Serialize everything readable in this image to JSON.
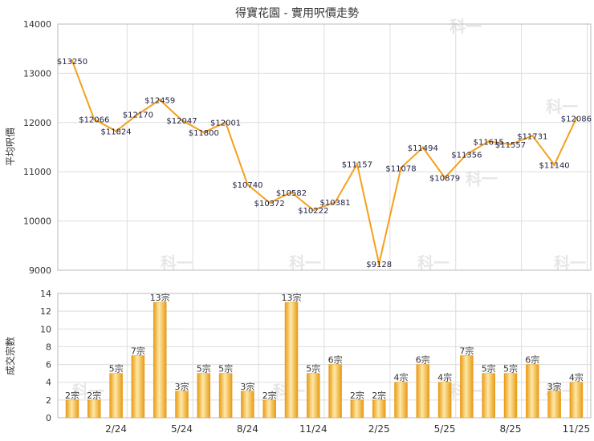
{
  "chart_data": [
    {
      "type": "line",
      "title": "得寶花園 - 實用呎價走勢",
      "ylabel": "平均呎價",
      "ylim": [
        9000,
        14000
      ],
      "yticks": [
        "14000",
        "13000",
        "12000",
        "11000",
        "10000",
        "9000"
      ],
      "x_tick_labels": [
        "2/24",
        "5/24",
        "8/24",
        "11/24",
        "2/25",
        "5/25",
        "8/25",
        "11/25"
      ],
      "series": [
        {
          "values": [
            13250,
            12066,
            11824,
            12170,
            12459,
            12047,
            11800,
            12001,
            10740,
            10372,
            10582,
            10222,
            10381,
            11157,
            9128,
            11078,
            11494,
            10879,
            11356,
            11615,
            11557,
            11731,
            11140,
            12086
          ],
          "labels": [
            "$13250",
            "$12066",
            "$11824",
            "$12170",
            "$12459",
            "$12047",
            "$11800",
            "$12001",
            "$10740",
            "$10372",
            "$10582",
            "$10222",
            "$10381",
            "$11157",
            "$9128",
            "$11078",
            "$11494",
            "$10879",
            "$11356",
            "$11615",
            "$11557",
            "$11731",
            "$11140",
            "$12086"
          ]
        }
      ],
      "grid": true
    },
    {
      "type": "bar",
      "ylabel": "成交宗數",
      "ylim": [
        0,
        14
      ],
      "yticks": [
        "14",
        "12",
        "10",
        "8",
        "6",
        "4",
        "2",
        "0"
      ],
      "x_tick_labels": [
        "2/24",
        "5/24",
        "8/24",
        "11/24",
        "2/25",
        "5/25",
        "8/25",
        "11/25"
      ],
      "values": [
        2,
        2,
        5,
        7,
        13,
        3,
        5,
        5,
        3,
        2,
        13,
        5,
        6,
        2,
        2,
        4,
        6,
        4,
        7,
        5,
        5,
        6,
        3,
        4
      ],
      "labels": [
        "2宗",
        "2宗",
        "5宗",
        "7宗",
        "13宗",
        "3宗",
        "5宗",
        "5宗",
        "3宗",
        "2宗",
        "13宗",
        "5宗",
        "6宗",
        "2宗",
        "2宗",
        "4宗",
        "6宗",
        "4宗",
        "7宗",
        "5宗",
        "5宗",
        "6宗",
        "3宗",
        "4宗"
      ],
      "grid": true
    }
  ],
  "watermark": "科一",
  "colors": {
    "line": "#f5a01a",
    "bar_light": "#fde9a8",
    "bar_dark": "#e99a14",
    "grid": "#dddddd"
  }
}
